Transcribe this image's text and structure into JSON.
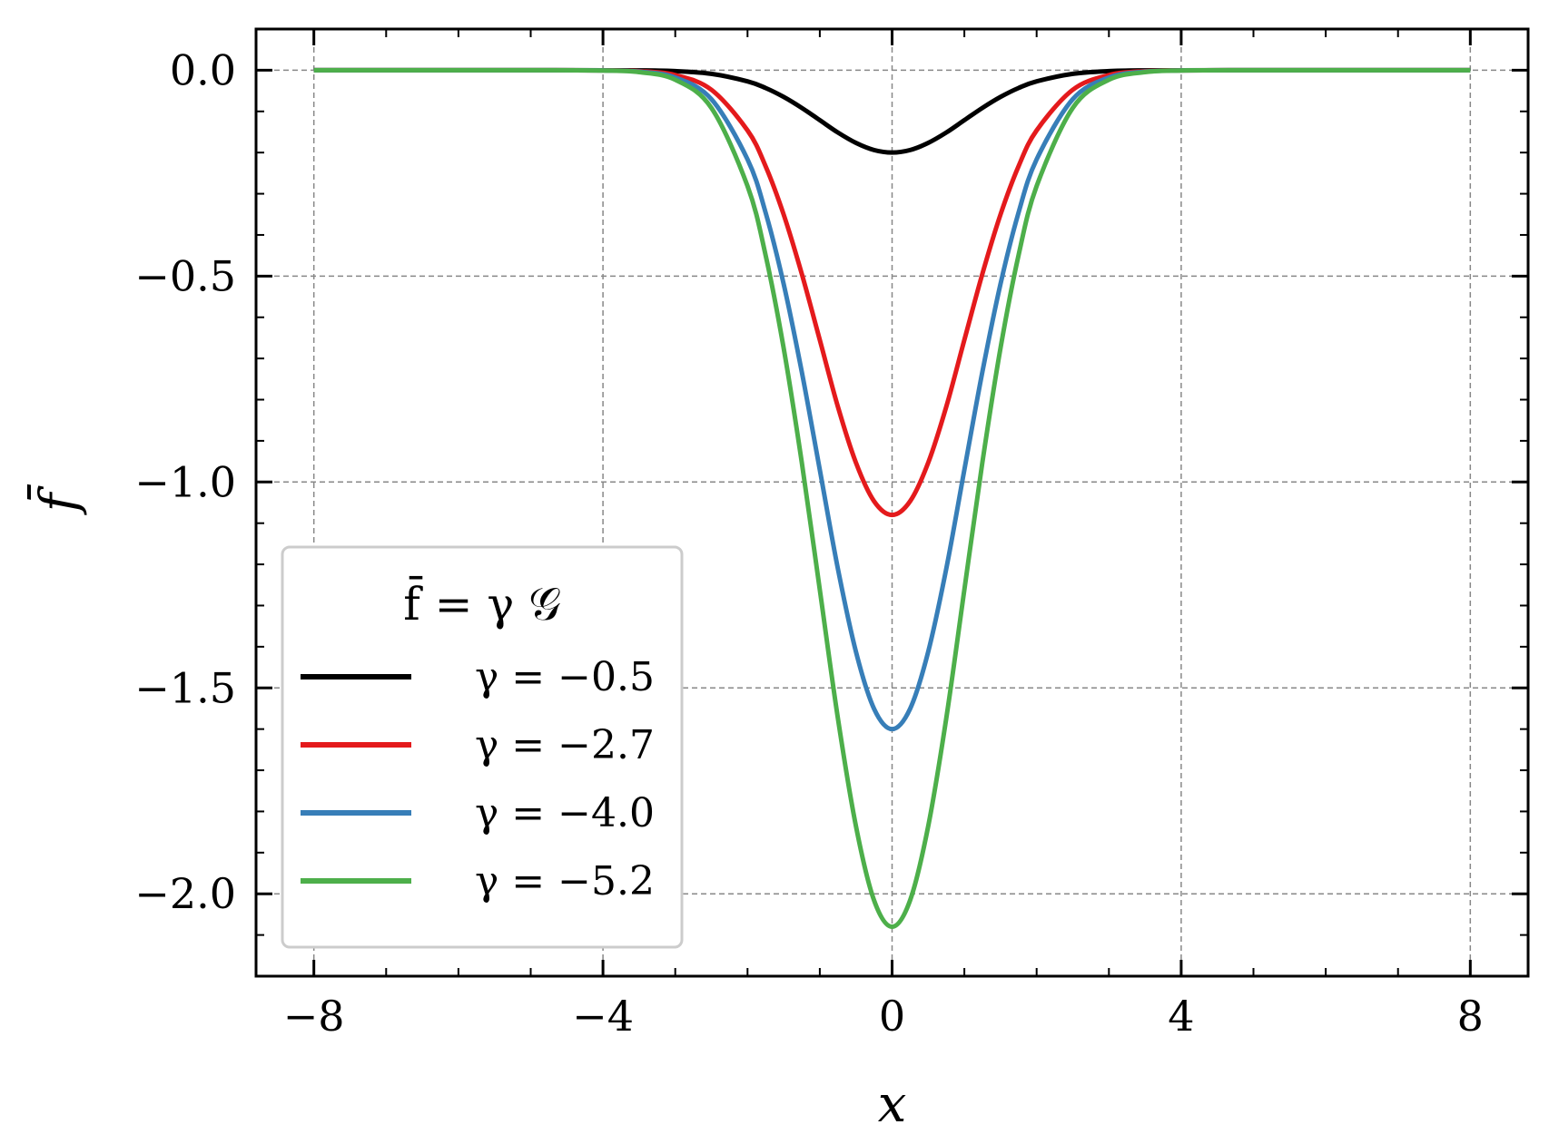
{
  "chart_data": {
    "type": "line",
    "xlabel": "x",
    "ylabel": "f̄",
    "xlim": [
      -8.8,
      8.8
    ],
    "ylim": [
      -2.2,
      0.1
    ],
    "xticks": [
      -8,
      -4,
      0,
      4,
      8
    ],
    "xtick_labels": [
      "−8",
      "−4",
      "0",
      "4",
      "8"
    ],
    "yticks": [
      0.0,
      -0.5,
      -1.0,
      -1.5,
      -2.0
    ],
    "ytick_labels": [
      "0.0",
      "−0.5",
      "−1.0",
      "−1.5",
      "−2.0"
    ],
    "grid": true,
    "legend": {
      "placement": "lower-left",
      "title": "f̄ = γ 𝒢"
    },
    "x": [
      -8,
      -7,
      -6,
      -5,
      -4,
      -3.5,
      -3,
      -2.5,
      -2,
      -1.75,
      -1.5,
      -1.25,
      -1,
      -0.75,
      -0.5,
      -0.25,
      0,
      0.25,
      0.5,
      0.75,
      1,
      1.25,
      1.5,
      1.75,
      2,
      2.5,
      3,
      3.5,
      4,
      5,
      6,
      7,
      8
    ],
    "series": [
      {
        "name": "γ = −0.5",
        "color": "#000000",
        "values": [
          0,
          0,
          0,
          0,
          -0.0001,
          -0.0004,
          -0.0022,
          -0.0088,
          -0.0271,
          -0.0432,
          -0.0649,
          -0.0915,
          -0.1213,
          -0.1513,
          -0.1765,
          -0.1938,
          -0.2,
          -0.1938,
          -0.1765,
          -0.1513,
          -0.1213,
          -0.0915,
          -0.0649,
          -0.0432,
          -0.0271,
          -0.0088,
          -0.0022,
          -0.0004,
          -0.0001,
          0,
          0,
          0,
          0
        ]
      },
      {
        "name": "γ = −2.7",
        "color": "#e41a1c",
        "values": [
          0,
          0,
          0,
          0,
          -0.0004,
          -0.0024,
          -0.0119,
          -0.0475,
          -0.1462,
          -0.2332,
          -0.3505,
          -0.4941,
          -0.655,
          -0.817,
          -0.9531,
          -1.0465,
          -1.08,
          -1.0465,
          -0.9531,
          -0.817,
          -0.655,
          -0.4941,
          -0.3505,
          -0.2332,
          -0.1462,
          -0.0475,
          -0.0119,
          -0.0024,
          -0.0004,
          0,
          0,
          0,
          0
        ]
      },
      {
        "name": "γ = −4.0",
        "color": "#377eb8",
        "values": [
          0,
          0,
          0,
          0,
          -0.0005,
          -0.0035,
          -0.0178,
          -0.0703,
          -0.2165,
          -0.3456,
          -0.5193,
          -0.732,
          -0.9704,
          -1.2104,
          -1.412,
          -1.5504,
          -1.6,
          -1.5504,
          -1.412,
          -1.2104,
          -0.9704,
          -0.732,
          -0.5193,
          -0.3456,
          -0.2165,
          -0.0703,
          -0.0178,
          -0.0035,
          -0.0005,
          0,
          0,
          0,
          0
        ]
      },
      {
        "name": "γ = −5.2",
        "color": "#4daf4a",
        "values": [
          0,
          0,
          0,
          0,
          -0.0007,
          -0.0046,
          -0.0231,
          -0.0915,
          -0.2815,
          -0.4492,
          -0.675,
          -0.9516,
          -1.2616,
          -1.5735,
          -1.8356,
          -2.0155,
          -2.08,
          -2.0155,
          -1.8356,
          -1.5735,
          -1.2616,
          -0.9516,
          -0.675,
          -0.4492,
          -0.2815,
          -0.0915,
          -0.0231,
          -0.0046,
          -0.0007,
          0,
          0,
          0,
          0
        ]
      }
    ]
  }
}
